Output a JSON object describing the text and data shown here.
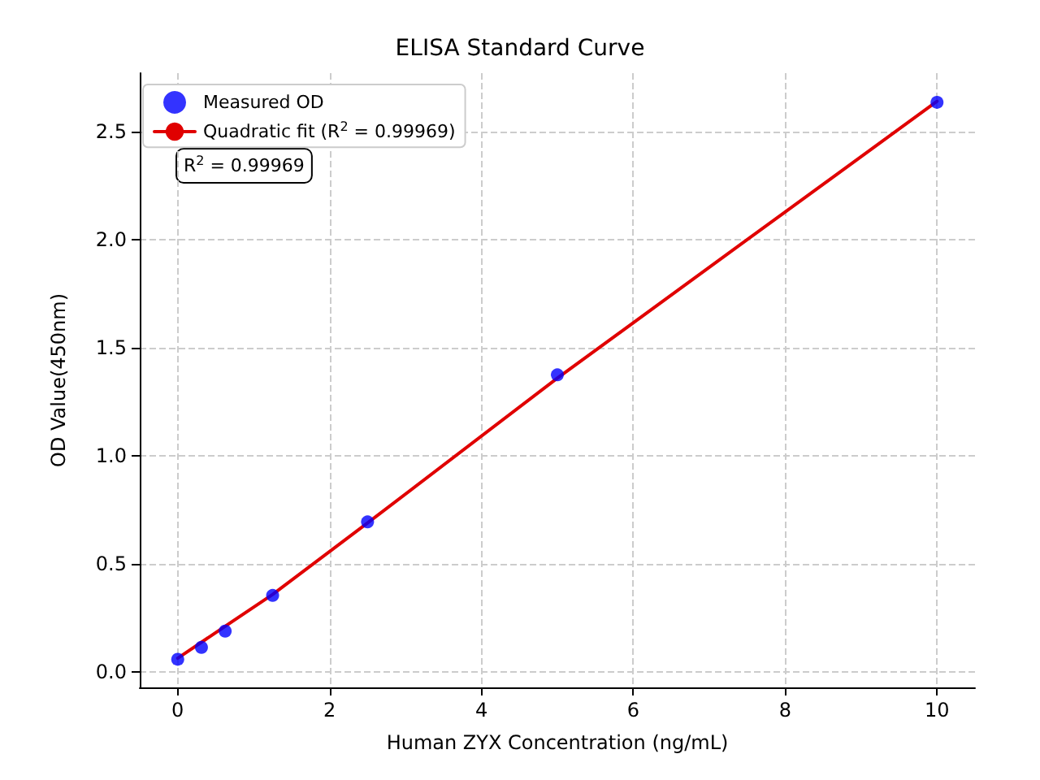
{
  "chart_data": {
    "type": "scatter",
    "title": "ELISA Standard Curve",
    "xlabel": "Human ZYX Concentration (ng/mL)",
    "ylabel": "OD Value(450nm)",
    "xlim": [
      -0.5,
      10.5
    ],
    "xticks": [
      0,
      2,
      4,
      6,
      8,
      10
    ],
    "ylim": [
      -0.07,
      2.77
    ],
    "yticks": [
      {
        "value": 0,
        "label": "0.0"
      },
      0.5,
      {
        "value": 1,
        "label": "1.0"
      },
      1.5,
      {
        "value": 2,
        "label": "2.0"
      },
      2.5
    ],
    "grid": true,
    "legend": "top left",
    "marker": "circle",
    "annotations": [
      "R$^{2}$ = 0.99969"
    ],
    "series": [
      {
        "name": "Measured OD",
        "color": "#0000ff",
        "x": [
          0,
          0.3125,
          0.625,
          1.25,
          2.5,
          5,
          10
        ],
        "values": [
          0.06,
          0.115,
          0.19,
          0.355,
          0.695,
          1.375,
          2.635
        ]
      },
      {
        "name": "Quadratic fit (R$^{2}$ = 0.99969)",
        "type": "line",
        "color": "#e00000",
        "marker": "none",
        "line_style": "solid",
        "x": [
          0,
          1.25,
          2.5,
          5,
          7.5,
          10
        ],
        "values": [
          0.065,
          0.36,
          0.69,
          1.36,
          2.0,
          2.64
        ]
      }
    ]
  }
}
